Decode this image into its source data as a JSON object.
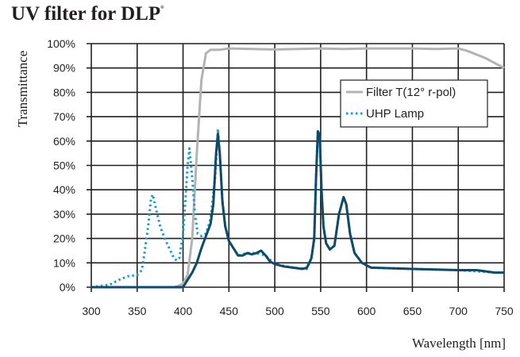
{
  "chart_data": {
    "type": "line",
    "title": "UV filter for DLP",
    "title_mark": "®",
    "xlabel": "Wavelength [nm]",
    "ylabel": "Transmittance",
    "xlim": [
      300,
      750
    ],
    "ylim": [
      0,
      100
    ],
    "xticks": [
      "300",
      "350",
      "400",
      "450",
      "500",
      "550",
      "600",
      "650",
      "700",
      "750"
    ],
    "yticks": [
      "0%",
      "10%",
      "20%",
      "30%",
      "40%",
      "50%",
      "60%",
      "70%",
      "80%",
      "90%",
      "100%"
    ],
    "grid": true,
    "legend_position": "top-right",
    "series": [
      {
        "name": "Filter T(12° r-pol)",
        "color": "#b3b3b3",
        "style": "solid",
        "x": [
          300,
          390,
          395,
          400,
          405,
          410,
          415,
          420,
          425,
          430,
          440,
          450,
          475,
          500,
          525,
          550,
          575,
          600,
          625,
          650,
          675,
          700,
          710,
          720,
          730,
          740,
          750
        ],
        "y": [
          0,
          0,
          0.5,
          1.5,
          5,
          20,
          55,
          85,
          96,
          97.5,
          97.5,
          98,
          97.8,
          97.6,
          97.8,
          98,
          97.8,
          98,
          98,
          98,
          97.8,
          98,
          97,
          95.5,
          94,
          92,
          90
        ]
      },
      {
        "name": "UHP Lamp",
        "color": "#1aa0c8",
        "style": "dotted",
        "x": [
          300,
          310,
          320,
          330,
          340,
          350,
          355,
          358,
          362,
          365,
          367,
          370,
          375,
          380,
          385,
          390,
          393,
          396,
          400,
          403,
          405,
          407,
          410,
          413,
          416,
          420,
          425,
          430,
          435,
          438,
          440,
          443,
          446,
          450,
          460,
          470,
          480,
          490,
          500,
          520,
          535,
          540,
          543,
          545,
          547,
          549,
          551,
          553,
          556,
          560,
          565,
          570,
          575,
          578,
          582,
          587,
          595,
          605,
          650,
          700,
          740,
          750
        ],
        "y": [
          0,
          0.5,
          1,
          3,
          4.5,
          5,
          7,
          14,
          25,
          36,
          38,
          33,
          25,
          20,
          16,
          12,
          11,
          12,
          22,
          38,
          50,
          57,
          45,
          30,
          22,
          21,
          22,
          28,
          45,
          65,
          55,
          35,
          25,
          19,
          13,
          14,
          14,
          13,
          9.5,
          8,
          7.5,
          12,
          20,
          45,
          64.5,
          62,
          40,
          25,
          18,
          15.5,
          17,
          30,
          37,
          34,
          22,
          14,
          10,
          8,
          7.5,
          7,
          6,
          6
        ]
      },
      {
        "color": "#0d4a6b",
        "style": "solid",
        "x": [
          300,
          400,
          405,
          410,
          415,
          420,
          425,
          430,
          433,
          436,
          438,
          440,
          443,
          446,
          450,
          455,
          460,
          465,
          470,
          475,
          480,
          485,
          490,
          495,
          500,
          510,
          520,
          530,
          535,
          540,
          543,
          545,
          547,
          549,
          551,
          553,
          556,
          560,
          565,
          570,
          575,
          578,
          582,
          587,
          595,
          605,
          650,
          700,
          720,
          740,
          750
        ],
        "y": [
          0,
          0,
          3,
          6,
          10,
          16,
          21,
          26,
          34,
          55,
          63,
          55,
          35,
          25,
          19,
          16,
          13,
          13,
          14,
          13.5,
          14,
          15,
          13,
          10.5,
          9.5,
          8.5,
          8,
          7.5,
          8,
          12,
          20,
          45,
          64,
          62,
          40,
          25,
          18,
          15.5,
          17,
          30,
          37,
          34,
          22,
          14,
          10,
          8,
          7.5,
          7,
          7,
          6,
          6
        ]
      }
    ]
  }
}
